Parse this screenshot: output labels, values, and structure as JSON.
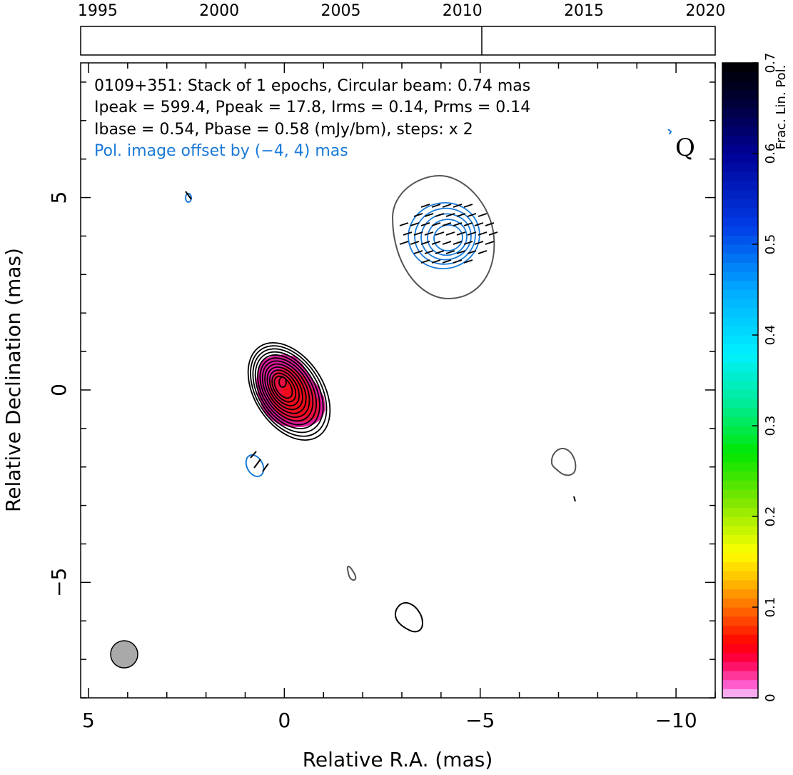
{
  "chart_data": {
    "type": "contour-map",
    "source": "0109+351",
    "header_lines": [
      "0109+351: Stack of 1 epochs, Circular beam: 0.74 mas",
      "Ipeak = 599.4, Ppeak = 17.8, Irms = 0.14, Prms = 0.14",
      "Ibase = 0.54, Pbase = 0.58 (mJy/bm), steps: x 2"
    ],
    "pol_offset_note": "Pol. image offset by (−4, 4) mas",
    "quality_flag": "Q",
    "xlabel": "Relative R.A. (mas)",
    "ylabel": "Relative Declination (mas)",
    "xlim": [
      5.2,
      -11.0
    ],
    "ylim": [
      -8.0,
      8.5
    ],
    "xticks": [
      5,
      0,
      -5,
      -10
    ],
    "xtick_labels": [
      "5",
      "0",
      "−5",
      "−10"
    ],
    "yticks": [
      5,
      0,
      -5
    ],
    "ytick_labels": [
      "5",
      "0",
      "−5"
    ],
    "beam": {
      "diameter_mas": 0.74,
      "ra": 4.0,
      "dec": -7.1
    },
    "timeline": {
      "years": [
        1995,
        2000,
        2005,
        2010,
        2015,
        2020
      ],
      "year_labels": [
        "1995",
        "2000",
        "2005",
        "2010",
        "2015",
        "2020"
      ],
      "range": [
        1994.3,
        2020.4
      ],
      "epochs": [
        2010.8
      ]
    },
    "colorbar": {
      "label": "Frac. Lin. Pol.",
      "range": [
        0,
        0.7
      ],
      "ticks": [
        0,
        0.1,
        0.2,
        0.3,
        0.4,
        0.5,
        0.6,
        0.7
      ],
      "tick_labels": [
        "0",
        "0.1",
        "0.2",
        "0.3",
        "0.4",
        "0.5",
        "0.6",
        "0.7"
      ]
    },
    "core_component": {
      "ra": -0.2,
      "dec": -0.45,
      "levels": 12
    },
    "polarized_component": {
      "ra": -4.4,
      "dec": 3.8,
      "levels": 5
    }
  }
}
